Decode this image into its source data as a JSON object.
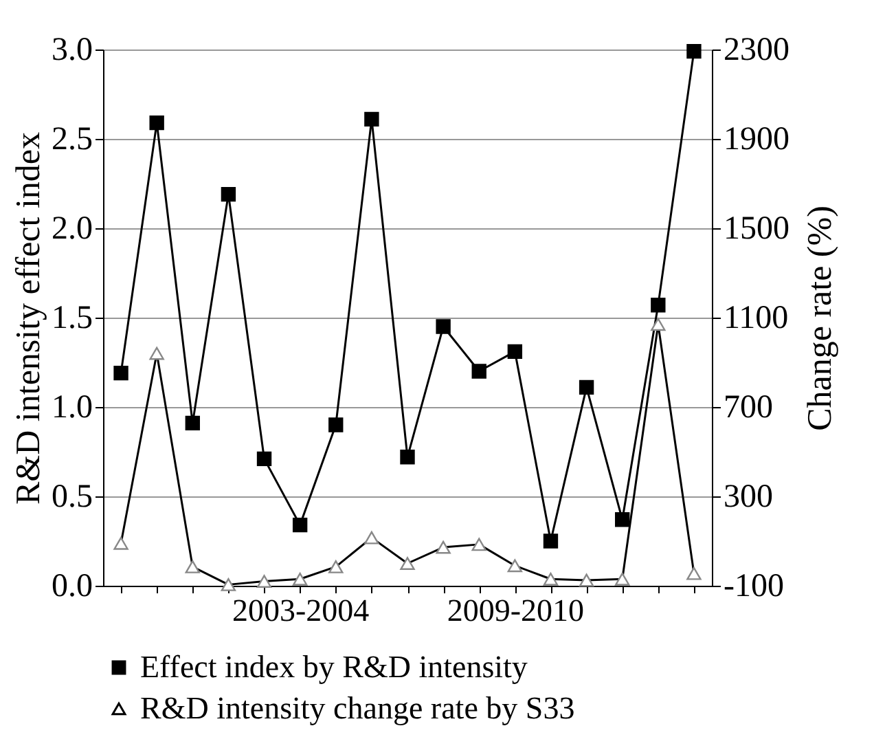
{
  "chart_data": {
    "type": "line",
    "categories": [
      null,
      null,
      null,
      null,
      null,
      "2003-2004",
      null,
      null,
      null,
      null,
      null,
      "2009-2010",
      null,
      null,
      null,
      null,
      null
    ],
    "ylabel": "R&D intensity effect index",
    "y2label": "Change rate (%)",
    "ylim": [
      0,
      3.0
    ],
    "yticks": [
      {
        "value": 0,
        "label": "0.0"
      },
      {
        "value": 0.5,
        "label": "0.5"
      },
      {
        "value": 1,
        "label": "1.0"
      },
      {
        "value": 1.5,
        "label": "1.5"
      },
      {
        "value": 2,
        "label": "2.0"
      },
      {
        "value": 2.5,
        "label": "2.5"
      },
      {
        "value": 3,
        "label": "3.0"
      }
    ],
    "y2lim": [
      -100,
      2300
    ],
    "y2ticks": [
      -100,
      300,
      700,
      1100,
      1500,
      1900,
      2300
    ],
    "grid": "y",
    "legend": "bottom",
    "series": [
      {
        "name": "Effect index by R&D intensity",
        "color": "#000000",
        "marker": "square",
        "values": [
          1.19,
          2.59,
          0.91,
          2.19,
          0.71,
          0.34,
          0.9,
          2.61,
          0.72,
          1.45,
          1.2,
          1.31,
          0.25,
          1.11,
          0.37,
          1.57,
          2.99
        ]
      },
      {
        "name": "R&D intensity change rate by S33",
        "color": "#000000",
        "marker": "triangle",
        "axis": "y2",
        "values": [
          90,
          940,
          -15,
          -95,
          -80,
          -70,
          -15,
          115,
          0,
          72,
          85,
          -10,
          -70,
          -75,
          -70,
          1070,
          -45
        ]
      }
    ]
  }
}
